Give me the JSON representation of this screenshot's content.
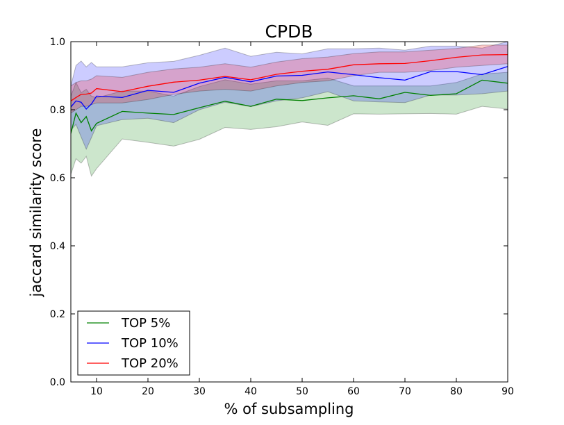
{
  "chart_data": {
    "type": "line",
    "title": "CPDB",
    "xlabel": "% of subsampling",
    "ylabel": "jaccard similarity score",
    "xlim": [
      5,
      90
    ],
    "ylim": [
      0.0,
      1.0
    ],
    "xticks": [
      "10",
      "20",
      "30",
      "40",
      "50",
      "60",
      "70",
      "80",
      "90"
    ],
    "yticks": [
      "0.0",
      "0.2",
      "0.4",
      "0.6",
      "0.8",
      "1.0"
    ],
    "grid": false,
    "legend_position": "bottom-left",
    "x": [
      5,
      6,
      7,
      8,
      9,
      10,
      15,
      20,
      25,
      30,
      35,
      40,
      45,
      50,
      55,
      60,
      65,
      70,
      75,
      80,
      85,
      90
    ],
    "series": [
      {
        "name": "TOP 5%",
        "color": "#008000",
        "values": [
          0.73,
          0.79,
          0.762,
          0.78,
          0.738,
          0.76,
          0.795,
          0.79,
          0.786,
          0.806,
          0.825,
          0.81,
          0.831,
          0.827,
          0.835,
          0.841,
          0.832,
          0.851,
          0.842,
          0.847,
          0.887,
          0.878
        ],
        "lower": [
          0.61,
          0.656,
          0.643,
          0.663,
          0.605,
          0.627,
          0.714,
          0.704,
          0.693,
          0.713,
          0.748,
          0.742,
          0.75,
          0.764,
          0.754,
          0.788,
          0.787,
          0.788,
          0.789,
          0.787,
          0.81,
          0.802
        ],
        "upper": [
          0.84,
          0.88,
          0.85,
          0.86,
          0.84,
          0.835,
          0.855,
          0.855,
          0.84,
          0.868,
          0.888,
          0.875,
          0.885,
          0.885,
          0.893,
          0.87,
          0.87,
          0.87,
          0.87,
          0.88,
          0.905,
          0.91
        ]
      },
      {
        "name": "TOP 10%",
        "color": "#0000ff",
        "values": [
          0.808,
          0.826,
          0.822,
          0.802,
          0.817,
          0.84,
          0.836,
          0.857,
          0.851,
          0.878,
          0.895,
          0.882,
          0.899,
          0.901,
          0.911,
          0.903,
          0.894,
          0.887,
          0.912,
          0.912,
          0.903,
          0.927
        ],
        "lower": [
          0.74,
          0.757,
          0.72,
          0.684,
          0.718,
          0.753,
          0.771,
          0.775,
          0.762,
          0.8,
          0.822,
          0.809,
          0.826,
          0.835,
          0.853,
          0.826,
          0.823,
          0.821,
          0.843,
          0.843,
          0.847,
          0.855
        ],
        "upper": [
          0.87,
          0.93,
          0.943,
          0.926,
          0.939,
          0.926,
          0.926,
          0.938,
          0.942,
          0.96,
          0.981,
          0.957,
          0.969,
          0.964,
          0.979,
          0.979,
          0.981,
          0.975,
          0.987,
          0.987,
          0.981,
          1.0
        ]
      },
      {
        "name": "TOP 20%",
        "color": "#ff0000",
        "values": [
          0.826,
          0.836,
          0.845,
          0.846,
          0.849,
          0.862,
          0.853,
          0.869,
          0.881,
          0.887,
          0.898,
          0.888,
          0.904,
          0.913,
          0.919,
          0.932,
          0.935,
          0.936,
          0.944,
          0.954,
          0.961,
          0.962
        ],
        "lower": [
          0.79,
          0.8,
          0.81,
          0.81,
          0.815,
          0.82,
          0.82,
          0.83,
          0.845,
          0.855,
          0.86,
          0.855,
          0.87,
          0.88,
          0.885,
          0.9,
          0.91,
          0.91,
          0.915,
          0.925,
          0.93,
          0.935
        ],
        "upper": [
          0.87,
          0.88,
          0.885,
          0.885,
          0.89,
          0.9,
          0.895,
          0.91,
          0.92,
          0.925,
          0.935,
          0.925,
          0.94,
          0.95,
          0.955,
          0.965,
          0.97,
          0.97,
          0.975,
          0.98,
          0.99,
          0.99
        ]
      }
    ]
  }
}
